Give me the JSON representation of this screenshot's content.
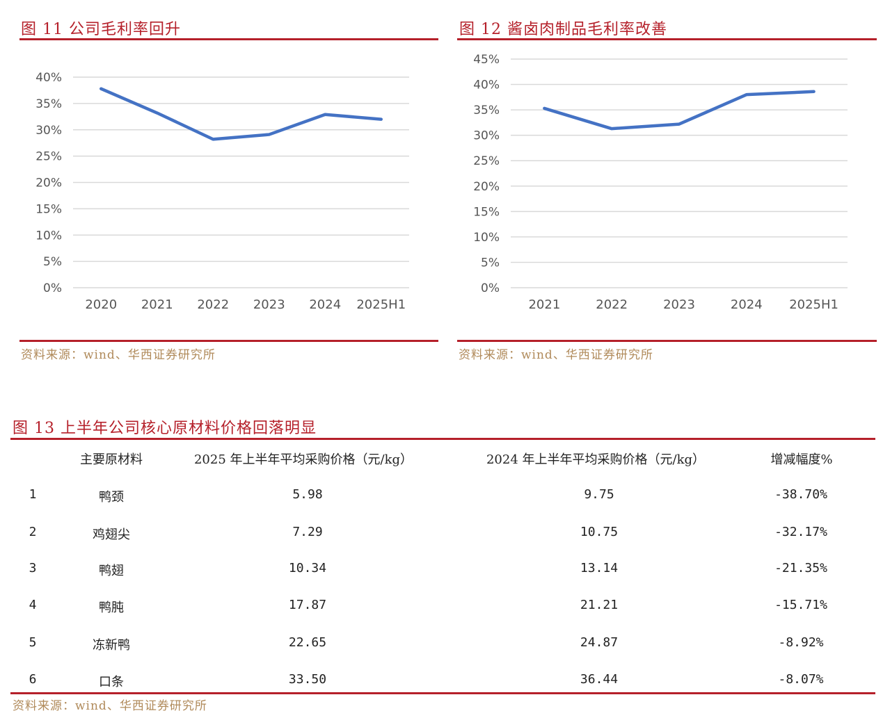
{
  "figure11": {
    "title": "图 11   公司毛利率回升",
    "source": "资料来源：wind、华西证券研究所",
    "chart_data": {
      "type": "line",
      "categories": [
        "2020",
        "2021",
        "2022",
        "2023",
        "2024",
        "2025H1"
      ],
      "series": [
        {
          "values": [
            37.8,
            33.2,
            28.2,
            29.1,
            32.9,
            32.0
          ]
        }
      ],
      "y_ticks": [
        "0%",
        "5%",
        "10%",
        "15%",
        "20%",
        "25%",
        "30%",
        "35%",
        "40%"
      ],
      "ylim": [
        0,
        40
      ],
      "grid": true,
      "line_color": "#4472c4"
    }
  },
  "figure12": {
    "title": "图 12   酱卤肉制品毛利率改善",
    "source": "资料来源：wind、华西证券研究所",
    "chart_data": {
      "type": "line",
      "categories": [
        "2021",
        "2022",
        "2023",
        "2024",
        "2025H1"
      ],
      "series": [
        {
          "values": [
            35.3,
            31.3,
            32.2,
            38.0,
            38.6
          ]
        }
      ],
      "y_ticks": [
        "0%",
        "5%",
        "10%",
        "15%",
        "20%",
        "25%",
        "30%",
        "35%",
        "40%",
        "45%"
      ],
      "ylim": [
        0,
        45
      ],
      "grid": true,
      "line_color": "#4472c4"
    }
  },
  "figure13": {
    "title": "图 13   上半年公司核心原材料价格回落明显",
    "source": "资料来源：wind、华西证券研究所",
    "headers": [
      "",
      "主要原材料",
      "2025 年上半年平均采购价格（元/kg）",
      "2024 年上半年平均采购价格（元/kg）",
      "增减幅度%"
    ],
    "rows": [
      [
        "1",
        "鸭颈",
        "5.98",
        "9.75",
        "-38.70%"
      ],
      [
        "2",
        "鸡翅尖",
        "7.29",
        "10.75",
        "-32.17%"
      ],
      [
        "3",
        "鸭翅",
        "10.34",
        "13.14",
        "-21.35%"
      ],
      [
        "4",
        "鸭肫",
        "17.87",
        "21.21",
        "-15.71%"
      ],
      [
        "5",
        "冻新鸭",
        "22.65",
        "24.87",
        "-8.92%"
      ],
      [
        "6",
        "口条",
        "33.50",
        "36.44",
        "-8.07%"
      ]
    ]
  }
}
